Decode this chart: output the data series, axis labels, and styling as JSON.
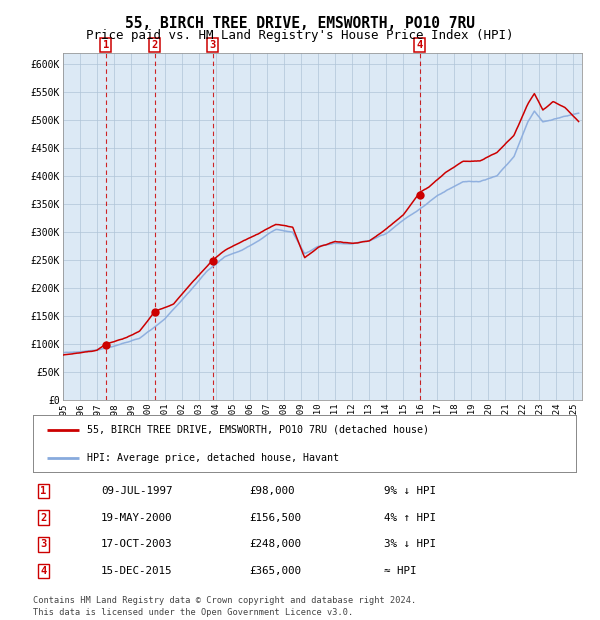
{
  "title": "55, BIRCH TREE DRIVE, EMSWORTH, PO10 7RU",
  "subtitle": "Price paid vs. HM Land Registry's House Price Index (HPI)",
  "title_fontsize": 10.5,
  "subtitle_fontsize": 9.0,
  "background_color": "#ffffff",
  "plot_bg_color": "#dce9f5",
  "legend_line1": "55, BIRCH TREE DRIVE, EMSWORTH, PO10 7RU (detached house)",
  "legend_line2": "HPI: Average price, detached house, Havant",
  "footer": "Contains HM Land Registry data © Crown copyright and database right 2024.\nThis data is licensed under the Open Government Licence v3.0.",
  "sales": [
    {
      "label": "1",
      "date": "09-JUL-1997",
      "price": 98000,
      "note": "9% ↓ HPI",
      "x_year": 1997.52
    },
    {
      "label": "2",
      "date": "19-MAY-2000",
      "price": 156500,
      "note": "4% ↑ HPI",
      "x_year": 2000.38
    },
    {
      "label": "3",
      "date": "17-OCT-2003",
      "price": 248000,
      "note": "3% ↓ HPI",
      "x_year": 2003.79
    },
    {
      "label": "4",
      "date": "15-DEC-2015",
      "price": 365000,
      "note": "≈ HPI",
      "x_year": 2015.96
    }
  ],
  "ylim": [
    0,
    620000
  ],
  "xlim_start": 1995.0,
  "xlim_end": 2025.5,
  "yticks": [
    0,
    50000,
    100000,
    150000,
    200000,
    250000,
    300000,
    350000,
    400000,
    450000,
    500000,
    550000,
    600000
  ],
  "ytick_labels": [
    "£0",
    "£50K",
    "£100K",
    "£150K",
    "£200K",
    "£250K",
    "£300K",
    "£350K",
    "£400K",
    "£450K",
    "£500K",
    "£550K",
    "£600K"
  ],
  "xticks": [
    1995,
    1996,
    1997,
    1998,
    1999,
    2000,
    2001,
    2002,
    2003,
    2004,
    2005,
    2006,
    2007,
    2008,
    2009,
    2010,
    2011,
    2012,
    2013,
    2014,
    2015,
    2016,
    2017,
    2018,
    2019,
    2020,
    2021,
    2022,
    2023,
    2024,
    2025
  ],
  "hpi_color": "#88aadd",
  "price_color": "#cc0000",
  "dot_color": "#cc0000",
  "vline_color": "#cc0000",
  "label_box_color": "#cc0000",
  "grid_color": "#b0c4d8",
  "legend_border_color": "#888888",
  "table_box_color": "#cc0000"
}
